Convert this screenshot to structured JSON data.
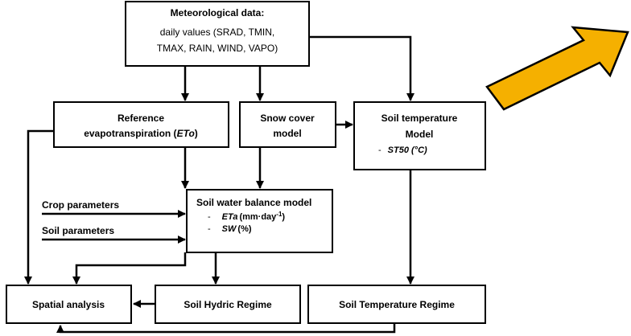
{
  "nodes": [
    {
      "title": "Meteorological data:",
      "lines": [
        "daily values (SRAD, TMIN,",
        "TMAX, RAIN, WIND, VAPO)"
      ]
    },
    {
      "line1": "Reference",
      "line2": "evapotranspiration (",
      "symbol": "ETo",
      "close": ")"
    },
    {
      "line1": "Snow cover",
      "line2": "model"
    },
    {
      "line1": "Soil temperature",
      "line2": "Model",
      "bullet": "-",
      "item": "ST50 (°C)"
    },
    {
      "title": "Soil water balance model",
      "items": [
        {
          "bullet": "-",
          "symbol": "ETa",
          "unit": "(mm·day",
          "sup": "-1",
          "close": ")"
        },
        {
          "bullet": "-",
          "symbol": "SW",
          "unit": "(%)"
        }
      ]
    },
    {
      "label": "Spatial analysis"
    },
    {
      "label": "Soil Hydric Regime"
    },
    {
      "label": "Soil Temperature Regime"
    }
  ],
  "inputs": [
    "Crop parameters",
    "Soil parameters"
  ]
}
